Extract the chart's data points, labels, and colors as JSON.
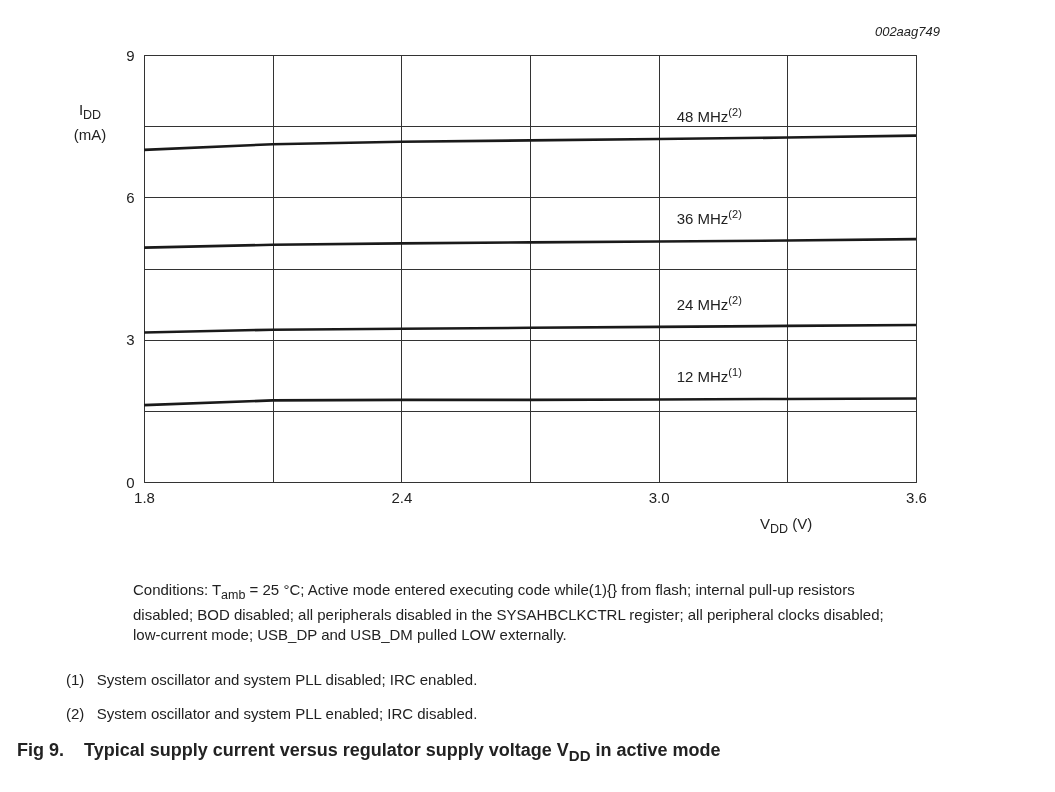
{
  "chart_data": {
    "type": "line",
    "title": "Fig 9.    Typical supply current versus regulator supply voltage V$_{DD}$ in active mode",
    "xlabel": "V$_{DD}$ (V)",
    "ylabel": "I$_{DD}$ (mA)",
    "x": [
      1.8,
      2.1,
      2.4,
      2.7,
      3.0,
      3.3,
      3.6
    ],
    "series": [
      {
        "name": "48 MHz$^{(2)}$",
        "color": "#1a1a1a",
        "values": [
          7.0,
          7.12,
          7.17,
          7.2,
          7.23,
          7.26,
          7.3
        ]
      },
      {
        "name": "36 MHz$^{(2)}$",
        "color": "#1a1a1a",
        "values": [
          4.94,
          5.0,
          5.03,
          5.05,
          5.07,
          5.09,
          5.12
        ]
      },
      {
        "name": "24 MHz$^{(2)}$",
        "color": "#1a1a1a",
        "values": [
          3.15,
          3.21,
          3.23,
          3.25,
          3.27,
          3.29,
          3.31
        ]
      },
      {
        "name": "12 MHz$^{(1)}$",
        "color": "#1a1a1a",
        "values": [
          1.62,
          1.72,
          1.73,
          1.73,
          1.74,
          1.75,
          1.76
        ]
      }
    ],
    "xlim": [
      1.8,
      3.6
    ],
    "xticks": [
      1.8,
      {
        "value": 2.1,
        "label": null
      },
      2.4,
      {
        "value": 2.7,
        "label": null
      },
      {
        "value": 3.0,
        "label": "3.0"
      },
      {
        "value": 3.3,
        "label": null
      },
      3.6
    ],
    "ylim": [
      0,
      9
    ],
    "yticks": [
      0,
      {
        "value": 1.5,
        "label": null
      },
      3,
      {
        "value": 4.5,
        "label": null
      },
      6,
      {
        "value": 7.5,
        "label": null
      },
      9
    ],
    "grid": true,
    "marker": "none",
    "line_style": "solid",
    "annotations": [
      "002aag749",
      "Conditions: T$_{amb}$ = 25 °C; Active mode entered executing code while(1){} from flash; internal pull-up resistors disabled; BOD disabled; all peripherals disabled in the SYSAHBCLKCTRL register; all peripheral clocks disabled; low-current mode; USB_DP and USB_DM pulled LOW externally.",
      "(1)   System oscillator and system PLL disabled; IRC enabled.",
      "(2)   System oscillator and system PLL enabled; IRC disabled."
    ]
  }
}
